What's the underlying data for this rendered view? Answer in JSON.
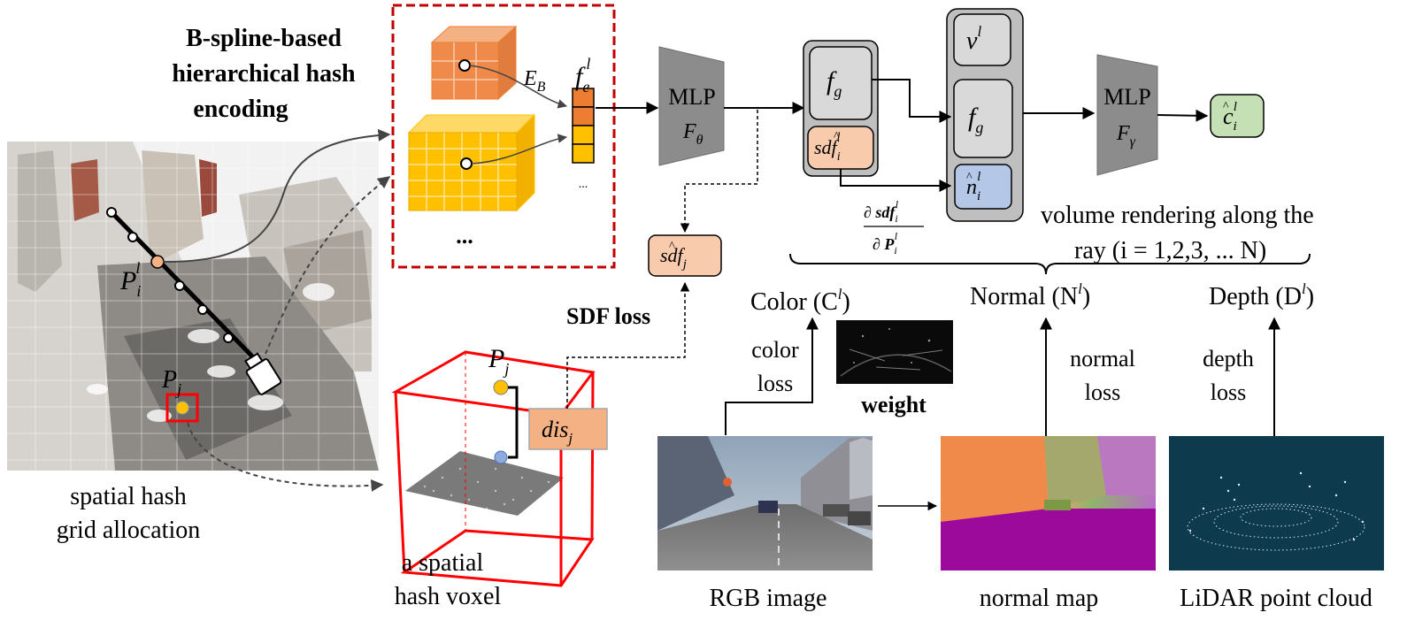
{
  "title_encoding": [
    "B-spline-based",
    "hierarchical hash",
    "encoding"
  ],
  "enc_label_E": "E",
  "enc_label_E_sub": "B",
  "feature_f": "f",
  "feature_f_sub": "e",
  "feature_f_sup": "l",
  "feature_ellipsis": "...",
  "grid_ellipsis": "...",
  "mlp1": {
    "title": "MLP",
    "sym": "F",
    "sub": "θ"
  },
  "mlp2": {
    "title": "MLP",
    "sym": "F",
    "sub": "γ"
  },
  "box_fg": "f",
  "box_fg_sub": "g",
  "box_sdf_i": "sdf",
  "box_sdf_i_sub": "i",
  "box_sdf_i_sup": "l",
  "box_v": "v",
  "box_v_sup": "l",
  "box_fg2": "f",
  "box_fg2_sub": "g",
  "box_n": "n",
  "box_n_sub": "i",
  "box_n_sup": "l",
  "output_c": "c",
  "output_c_sub": "i",
  "output_c_sup": "l",
  "grad_num": "∂ sdf",
  "grad_num_sub": "i",
  "grad_num_sup": "l",
  "grad_den": "∂ P",
  "grad_den_sub": "i",
  "grad_den_sup": "l",
  "sdf_j": "sdf",
  "sdf_j_sub": "j",
  "volume_line1": "volume rendering along the",
  "volume_line2": "ray  (i = 1,2,3, ... N)",
  "color_label": "Color (C",
  "normal_label": "Normal (N",
  "depth_label": "Depth (D",
  "sup_l": "l",
  "close_paren": ")",
  "color_loss": [
    "color",
    "loss"
  ],
  "normal_loss": [
    "normal",
    "loss"
  ],
  "depth_loss": [
    "depth",
    "loss"
  ],
  "weight_label": "weight",
  "sdf_loss": "SDF loss",
  "point_Pi": "P",
  "point_Pi_sub": "i",
  "point_Pi_sup": "l",
  "point_Pj": "P",
  "point_Pj_sub": "j",
  "dis_label": "dis",
  "dis_sub": "j",
  "caption_spatial": [
    "spatial hash",
    "grid allocation"
  ],
  "caption_voxel": [
    "a spatial",
    "hash voxel"
  ],
  "caption_rgb": "RGB image",
  "caption_normal": "normal map",
  "caption_lidar": "LiDAR point cloud",
  "colors": {
    "orange_box": "#f8cbad",
    "blue_box": "#b4c7e7",
    "green_box": "#c5e0b4",
    "gray_box": "#d9d9d9",
    "panel_gray": "#bfbfbf",
    "mlp_gray": "#8c8c8c",
    "red_dash": "#c00000",
    "voxel_red": "#ff0000",
    "grid_orange": "#ed7d31",
    "grid_yellow": "#ffc000",
    "lidar_bg": "#0e3a4e",
    "normal_magenta": "#9b0a9b"
  }
}
